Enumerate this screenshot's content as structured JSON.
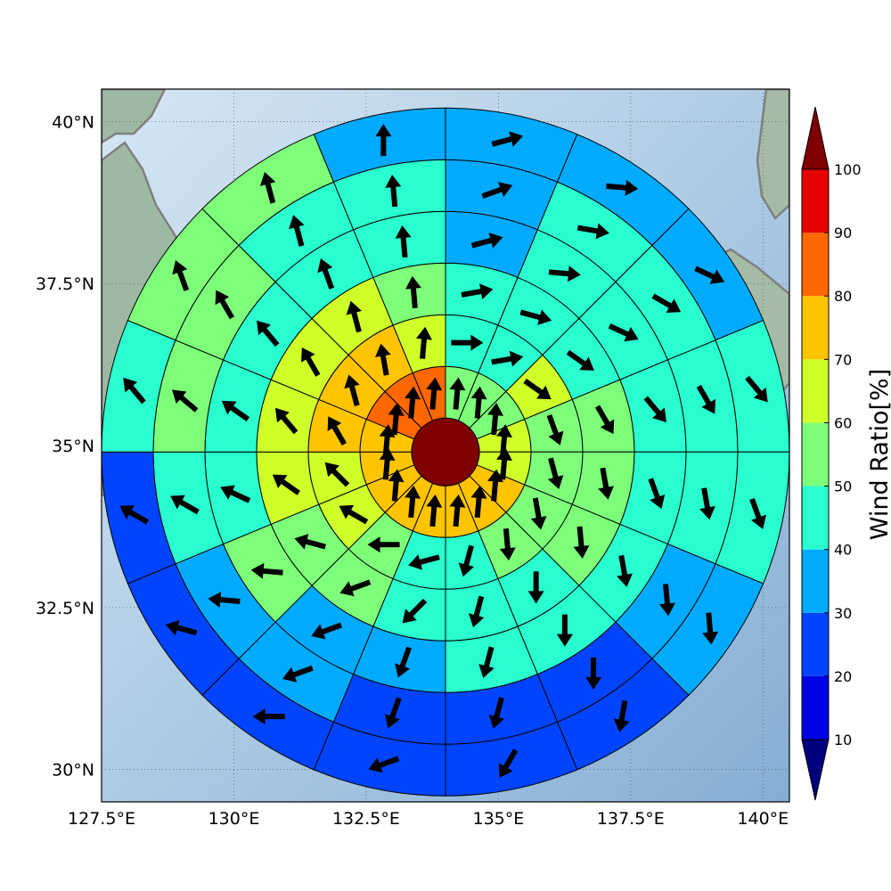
{
  "chart_data": {
    "type": "heatmap",
    "subtype": "polar-sector-wind-map",
    "title": "",
    "xlabel": "",
    "ylabel": "",
    "map": {
      "lon_range": [
        127.5,
        140.5
      ],
      "lat_range": [
        29.5,
        40.5
      ],
      "x_ticks": [
        "127.5°E",
        "130°E",
        "132.5°E",
        "135°E",
        "137.5°E",
        "140°E"
      ],
      "x_tick_values": [
        127.5,
        130,
        132.5,
        135,
        137.5,
        140
      ],
      "y_ticks": [
        "30°N",
        "32.5°N",
        "35°N",
        "37.5°N",
        "40°N"
      ],
      "y_tick_values": [
        30,
        32.5,
        35,
        37.5,
        40
      ],
      "grid": "dotted",
      "background": "shaded-relief terrain with coastlines (Korea, Japan)"
    },
    "center": {
      "lon": 134.0,
      "lat": 34.9,
      "value": 100
    },
    "sectors_per_ring": 16,
    "sector_start_angle_deg": 90,
    "sector_direction": "clockwise",
    "rings": [
      {
        "ring": 1,
        "values": [
          58,
          57,
          57,
          62,
          65,
          72,
          75,
          72,
          72,
          72,
          72,
          72,
          72,
          80,
          80,
          80
        ],
        "wind_dir_deg": [
          5,
          5,
          5,
          5,
          5,
          5,
          5,
          5,
          5,
          5,
          5,
          5,
          5,
          5,
          5,
          5
        ]
      },
      {
        "ring": 2,
        "values": [
          45,
          43,
          65,
          58,
          55,
          55,
          58,
          45,
          48,
          58,
          65,
          65,
          72,
          72,
          72,
          65
        ],
        "wind_dir_deg": [
          90,
          80,
          125,
          160,
          165,
          170,
          175,
          195,
          255,
          270,
          300,
          315,
          330,
          345,
          350,
          5
        ]
      },
      {
        "ring": 3,
        "values": [
          45,
          45,
          45,
          55,
          55,
          50,
          45,
          45,
          45,
          50,
          55,
          65,
          65,
          65,
          60,
          55
        ],
        "wind_dir_deg": [
          80,
          105,
          125,
          150,
          170,
          175,
          180,
          195,
          225,
          250,
          285,
          305,
          320,
          330,
          345,
          355
        ]
      },
      {
        "ring": 4,
        "values": [
          35,
          45,
          45,
          45,
          40,
          40,
          40,
          40,
          35,
          35,
          50,
          45,
          45,
          45,
          45,
          45
        ],
        "wind_dir_deg": [
          75,
          95,
          115,
          140,
          160,
          170,
          180,
          195,
          200,
          250,
          275,
          295,
          305,
          320,
          340,
          355
        ]
      },
      {
        "ring": 5,
        "values": [
          35,
          45,
          40,
          45,
          40,
          35,
          25,
          25,
          25,
          35,
          35,
          45,
          50,
          50,
          45,
          45
        ],
        "wind_dir_deg": [
          70,
          100,
          120,
          150,
          170,
          175,
          180,
          195,
          200,
          250,
          275,
          300,
          310,
          330,
          345,
          355
        ]
      },
      {
        "ring": 6,
        "values": [
          35,
          35,
          35,
          45,
          45,
          35,
          25,
          25,
          25,
          25,
          25,
          25,
          45,
          50,
          55,
          35
        ],
        "wind_dir_deg": [
          75,
          95,
          115,
          140,
          160,
          175,
          190,
          210,
          250,
          270,
          285,
          300,
          320,
          340,
          345,
          360
        ]
      }
    ],
    "colorbar": {
      "label": "Wind Ratio[%]",
      "ticks": [
        "10",
        "20",
        "30",
        "40",
        "50",
        "60",
        "70",
        "80",
        "90",
        "100"
      ],
      "tick_values": [
        10,
        20,
        30,
        40,
        50,
        60,
        70,
        80,
        90,
        100
      ],
      "extend": "both",
      "levels": [
        {
          "range": [
            0,
            10
          ],
          "color": "#00007f"
        },
        {
          "range": [
            10,
            20
          ],
          "color": "#0000e6"
        },
        {
          "range": [
            20,
            30
          ],
          "color": "#0044ff"
        },
        {
          "range": [
            30,
            40
          ],
          "color": "#00aaff"
        },
        {
          "range": [
            40,
            50
          ],
          "color": "#29ffce"
        },
        {
          "range": [
            50,
            60
          ],
          "color": "#7dff7a"
        },
        {
          "range": [
            60,
            70
          ],
          "color": "#ceff29"
        },
        {
          "range": [
            70,
            80
          ],
          "color": "#ffc400"
        },
        {
          "range": [
            80,
            90
          ],
          "color": "#ff6800"
        },
        {
          "range": [
            90,
            100
          ],
          "color": "#e60000"
        },
        {
          "range": [
            100,
            110
          ],
          "color": "#7f0000"
        }
      ]
    }
  }
}
